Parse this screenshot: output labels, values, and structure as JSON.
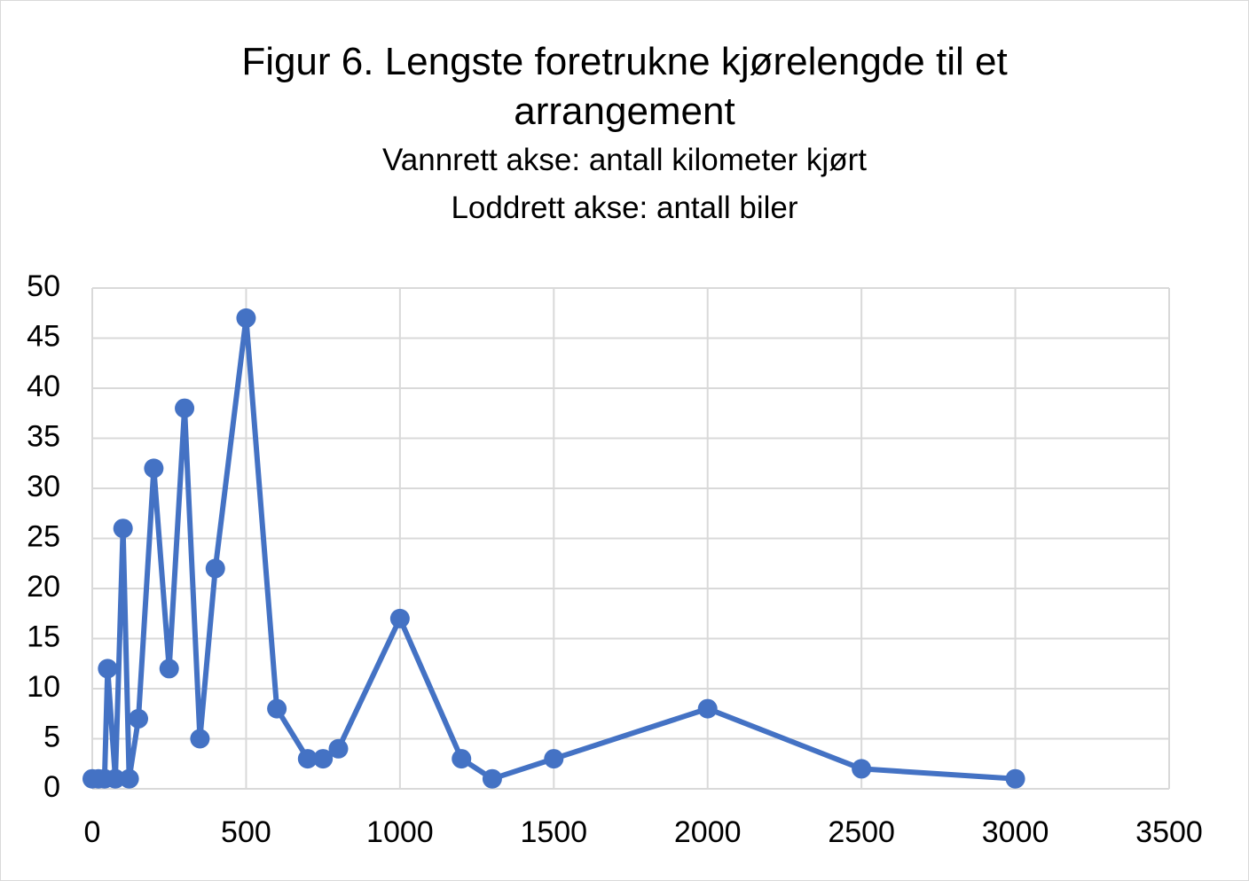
{
  "chart_data": {
    "type": "line",
    "title": "Figur 6. Lengste foretrukne kjørelengde til et arrangement",
    "subtitle": [
      "Vannrett akse: antall kilometer kjørt",
      "Loddrett akse: antall biler"
    ],
    "x": [
      0,
      20,
      40,
      50,
      75,
      100,
      120,
      150,
      200,
      250,
      300,
      350,
      400,
      500,
      600,
      700,
      750,
      800,
      1000,
      1200,
      1300,
      1500,
      2000,
      2500,
      3000
    ],
    "series": [
      {
        "color": "#4472c4",
        "values": [
          1,
          1,
          1,
          12,
          1,
          26,
          1,
          7,
          32,
          12,
          38,
          5,
          22,
          47,
          8,
          3,
          3,
          4,
          17,
          3,
          1,
          3,
          8,
          2,
          1
        ]
      }
    ],
    "xlim": [
      0,
      3500
    ],
    "xticks": [
      0,
      500,
      1000,
      1500,
      2000,
      2500,
      3000,
      3500
    ],
    "ylim": [
      0,
      50
    ],
    "yticks": [
      0,
      5,
      10,
      15,
      20,
      25,
      30,
      35,
      40,
      45,
      50
    ],
    "grid": true,
    "markers": true
  }
}
